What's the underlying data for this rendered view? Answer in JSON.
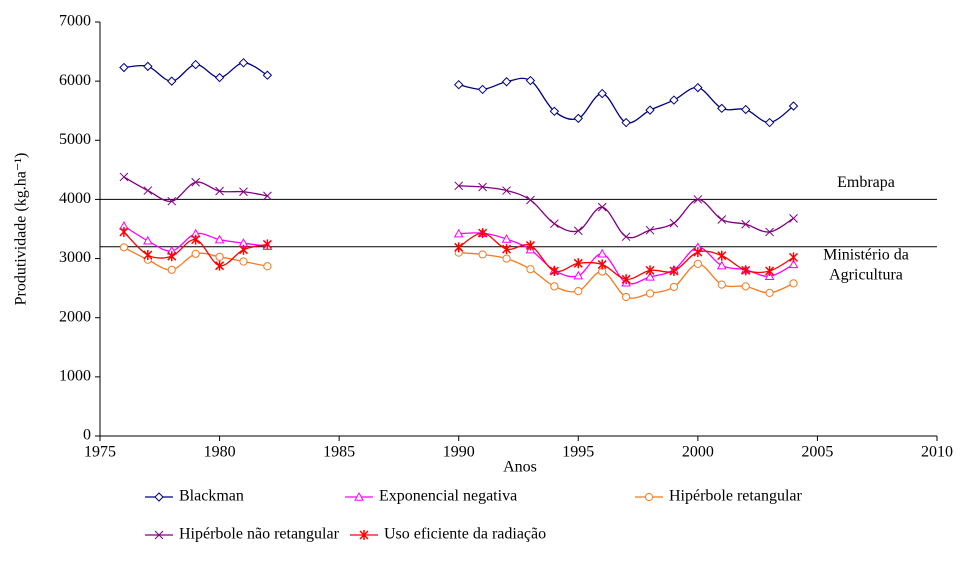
{
  "chart_data": {
    "type": "line",
    "x_label": "Anos",
    "y_label": "Produtividade (kg.ha⁻¹)",
    "x": [
      1976,
      1977,
      1978,
      1979,
      1980,
      1981,
      1982,
      1983,
      1984,
      1985,
      1986,
      1987,
      1988,
      1989,
      1990,
      1991,
      1992,
      1993,
      1994,
      1995,
      1996,
      1997,
      1998,
      1999,
      2000,
      2001,
      2002,
      2003,
      2004
    ],
    "series": [
      {
        "name": "Blackman",
        "color": "#000080",
        "marker": "diamond",
        "values": [
          6230,
          6250,
          6000,
          6280,
          6060,
          6310,
          6100,
          null,
          null,
          null,
          null,
          null,
          null,
          null,
          5940,
          5860,
          5990,
          6010,
          5490,
          5370,
          5790,
          5300,
          5510,
          5680,
          5890,
          5540,
          5520,
          5300,
          5580
        ]
      },
      {
        "name": "Exponencial negativa",
        "color": "#ff00ff",
        "marker": "triangle",
        "values": [
          3550,
          3300,
          3130,
          3420,
          3320,
          3260,
          3210,
          null,
          null,
          null,
          null,
          null,
          null,
          null,
          3420,
          3430,
          3330,
          3150,
          2800,
          2710,
          3080,
          2590,
          2690,
          2810,
          3190,
          2880,
          2810,
          2700,
          2900
        ]
      },
      {
        "name": "Hipérbole retangular",
        "color": "#f47a20",
        "marker": "circle",
        "values": [
          3190,
          2980,
          2810,
          3080,
          3030,
          2950,
          2870,
          null,
          null,
          null,
          null,
          null,
          null,
          null,
          3100,
          3070,
          3000,
          2820,
          2530,
          2450,
          2780,
          2350,
          2410,
          2520,
          2910,
          2560,
          2530,
          2420,
          2580
        ]
      },
      {
        "name": "Hipérbole não retangular",
        "color": "#800080",
        "marker": "x",
        "values": [
          4380,
          4150,
          3970,
          4290,
          4140,
          4130,
          4060,
          null,
          null,
          null,
          null,
          null,
          null,
          null,
          4230,
          4210,
          4150,
          3990,
          3590,
          3470,
          3870,
          3370,
          3480,
          3600,
          4000,
          3660,
          3580,
          3450,
          3680
        ]
      },
      {
        "name": "Uso eficiente da radiação",
        "color": "#ff0000",
        "marker": "asterisk",
        "values": [
          3450,
          3060,
          3040,
          3320,
          2880,
          3150,
          3240,
          null,
          null,
          null,
          null,
          null,
          null,
          null,
          3190,
          3430,
          3160,
          3220,
          2790,
          2920,
          2900,
          2650,
          2800,
          2790,
          3110,
          3050,
          2800,
          2790,
          3020
        ]
      }
    ],
    "hlines": [
      {
        "value": 4000,
        "label": [
          "Embrapa"
        ]
      },
      {
        "value": 3200,
        "label": [
          "Ministério da",
          "Agricultura"
        ]
      }
    ],
    "xlim": [
      1975,
      2010
    ],
    "xticks": [
      1975,
      1980,
      1985,
      1990,
      1995,
      2000,
      2005,
      2010
    ],
    "ylim": [
      0,
      7000
    ],
    "yticks": [
      0,
      1000,
      2000,
      3000,
      4000,
      5000,
      6000,
      7000
    ],
    "smooth": true
  }
}
